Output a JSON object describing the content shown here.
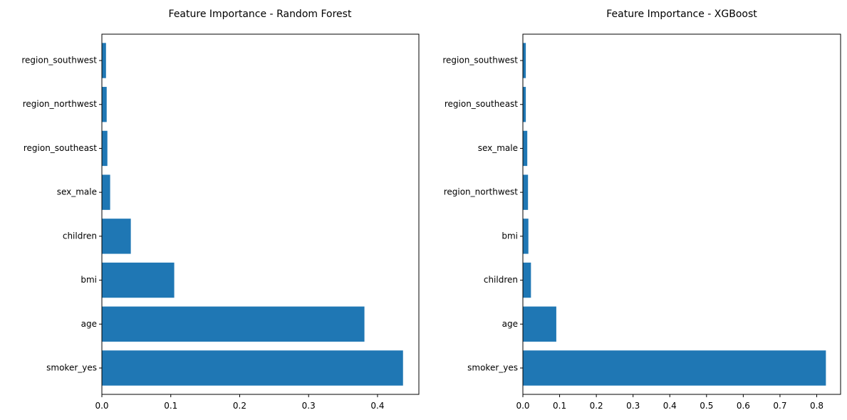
{
  "figure": {
    "background": "#ffffff",
    "bar_color": "#1f77b4"
  },
  "chart_data": [
    {
      "type": "bar",
      "orientation": "horizontal",
      "title": "Feature Importance - Random Forest",
      "xlabel": "",
      "ylabel": "",
      "categories": [
        "smoker_yes",
        "age",
        "bmi",
        "children",
        "sex_male",
        "region_southeast",
        "region_northwest",
        "region_southwest"
      ],
      "values": [
        0.437,
        0.381,
        0.105,
        0.042,
        0.012,
        0.008,
        0.007,
        0.006
      ],
      "xlim": [
        0,
        0.46
      ],
      "xticks": [
        0.0,
        0.1,
        0.2,
        0.3,
        0.4
      ],
      "xtick_labels": [
        "0.0",
        "0.1",
        "0.2",
        "0.3",
        "0.4"
      ],
      "grid": false,
      "legend": "none"
    },
    {
      "type": "bar",
      "orientation": "horizontal",
      "title": "Feature Importance - XGBoost",
      "xlabel": "",
      "ylabel": "",
      "categories": [
        "smoker_yes",
        "age",
        "children",
        "bmi",
        "region_northwest",
        "sex_male",
        "region_southeast",
        "region_southwest"
      ],
      "values": [
        0.825,
        0.091,
        0.022,
        0.015,
        0.014,
        0.012,
        0.008,
        0.008
      ],
      "xlim": [
        0,
        0.865
      ],
      "xticks": [
        0.0,
        0.1,
        0.2,
        0.3,
        0.4,
        0.5,
        0.6,
        0.7,
        0.8
      ],
      "xtick_labels": [
        "0.0",
        "0.1",
        "0.2",
        "0.3",
        "0.4",
        "0.5",
        "0.6",
        "0.7",
        "0.8"
      ],
      "grid": false,
      "legend": "none"
    }
  ]
}
